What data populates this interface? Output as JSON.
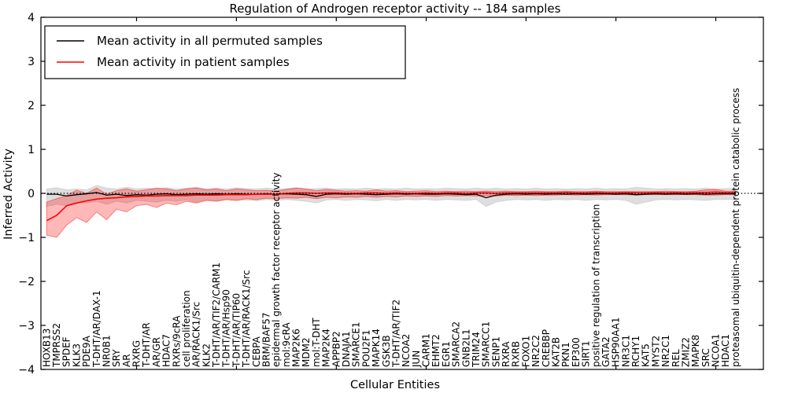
{
  "title": "Regulation of Androgen receptor activity -- 184 samples",
  "legend": {
    "position": "upper-left",
    "items": [
      {
        "label": "Mean activity in all permuted samples",
        "color": "#000000"
      },
      {
        "label": "Mean activity in patient samples",
        "color": "#ff0000"
      }
    ]
  },
  "chart_data": {
    "type": "line",
    "title": "Regulation of Androgen receptor activity -- 184 samples",
    "xlabel": "Cellular Entities",
    "ylabel": "Inferred Activity",
    "ylim": [
      -4,
      4
    ],
    "yticks": [
      4,
      3,
      2,
      1,
      0,
      -1,
      -2,
      -3,
      -4
    ],
    "ytick_labels": [
      "4",
      "3",
      "2",
      "1",
      "0",
      "−1",
      "−2",
      "−3",
      "−4"
    ],
    "grid": false,
    "zero_reference_line": "dotted",
    "legend_position": "upper-left",
    "categories": [
      "HOXB13",
      "TMPRSS2",
      "SPDEF",
      "KLK3",
      "PDE9A",
      "T-DHT/AR/DAX-1",
      "NR0B1",
      "SRY",
      "AR",
      "RXRG",
      "T-DHT/AR",
      "AR/GR",
      "HDAC7",
      "RXRs/9cRA",
      "cell proliferation",
      "AR/RACK1/Src",
      "KLK2",
      "T-DHT/AR/TIF2/CARM1",
      "T-DHT/AR/Hsp90",
      "T-DHT/AR/TIP60",
      "T-DHT/AR/RACK1/Src",
      "CEBPA",
      "BRM/BAF57",
      "epidermal growth factor receptor activity",
      "mol:9cRA",
      "MAP2K6",
      "MDM2",
      "mol:T-DHT",
      "MAP2K4",
      "APPBP2",
      "DNAJA1",
      "SMARCE1",
      "POU2F1",
      "MAPK14",
      "GSK3B",
      "T-DHT/AR/TIF2",
      "NCOA2",
      "JUN",
      "CARM1",
      "EHMT2",
      "EGR1",
      "SMARCA2",
      "GNB2L1",
      "TRIM24",
      "SMARCC1",
      "SENP1",
      "RXRA",
      "RXRB",
      "FOXO1",
      "NR2C2",
      "CREBBP",
      "KAT2B",
      "PKN1",
      "EP300",
      "SIRT1",
      "positive regulation of transcription",
      "GATA2",
      "HSP90AA1",
      "NR3C1",
      "RCHY1",
      "KAT5",
      "MYST2",
      "NR2C1",
      "REL",
      "ZMIZ2",
      "MAPK8",
      "SRC",
      "NCOA1",
      "HDAC1",
      "proteasomal ubiquitin-dependent protein catabolic process"
    ],
    "series": [
      {
        "name": "Mean activity in all permuted samples",
        "color": "#000000",
        "band_color": "rgba(0,0,0,0.13)",
        "band_edge_color": "rgba(0,0,0,0.10)",
        "values": [
          -0.02,
          -0.02,
          -0.06,
          -0.03,
          -0.01,
          0.02,
          -0.04,
          -0.02,
          -0.05,
          -0.03,
          -0.04,
          -0.02,
          -0.01,
          -0.03,
          -0.02,
          -0.01,
          -0.02,
          -0.01,
          -0.02,
          -0.01,
          -0.02,
          -0.02,
          -0.01,
          -0.02,
          -0.01,
          -0.02,
          -0.03,
          -0.07,
          -0.02,
          -0.01,
          -0.02,
          -0.01,
          -0.02,
          -0.03,
          -0.02,
          -0.01,
          -0.02,
          -0.01,
          -0.02,
          -0.02,
          -0.01,
          -0.02,
          -0.03,
          -0.02,
          -0.1,
          -0.04,
          -0.02,
          -0.01,
          -0.02,
          -0.01,
          -0.02,
          -0.01,
          -0.02,
          -0.01,
          -0.02,
          -0.01,
          -0.01,
          -0.02,
          -0.01,
          -0.03,
          -0.02,
          -0.01,
          -0.02,
          -0.01,
          -0.02,
          -0.01,
          -0.02,
          -0.01,
          -0.01,
          -0.01
        ],
        "band_upper": [
          0.1,
          0.13,
          0.08,
          0.1,
          0.08,
          0.18,
          0.12,
          0.1,
          0.14,
          0.1,
          0.12,
          0.1,
          0.13,
          0.1,
          0.12,
          0.14,
          0.1,
          0.12,
          0.1,
          0.13,
          0.11,
          0.1,
          0.12,
          0.1,
          0.11,
          0.13,
          0.1,
          0.11,
          0.12,
          0.1,
          0.11,
          0.1,
          0.12,
          0.1,
          0.11,
          0.1,
          0.12,
          0.1,
          0.11,
          0.1,
          0.12,
          0.11,
          0.1,
          0.12,
          0.1,
          0.12,
          0.1,
          0.11,
          0.1,
          0.12,
          0.1,
          0.11,
          0.1,
          0.11,
          0.1,
          0.12,
          0.1,
          0.11,
          0.1,
          0.14,
          0.12,
          0.1,
          0.11,
          0.1,
          0.11,
          0.1,
          0.12,
          0.1,
          0.11,
          0.12
        ],
        "band_lower": [
          -0.3,
          -0.25,
          -0.28,
          -0.2,
          -0.22,
          -0.18,
          -0.25,
          -0.18,
          -0.22,
          -0.16,
          -0.18,
          -0.2,
          -0.16,
          -0.18,
          -0.15,
          -0.2,
          -0.15,
          -0.17,
          -0.14,
          -0.16,
          -0.15,
          -0.17,
          -0.14,
          -0.16,
          -0.14,
          -0.16,
          -0.18,
          -0.22,
          -0.15,
          -0.14,
          -0.16,
          -0.14,
          -0.15,
          -0.17,
          -0.14,
          -0.16,
          -0.14,
          -0.15,
          -0.14,
          -0.16,
          -0.14,
          -0.15,
          -0.16,
          -0.14,
          -0.3,
          -0.2,
          -0.16,
          -0.14,
          -0.15,
          -0.14,
          -0.16,
          -0.14,
          -0.15,
          -0.14,
          -0.16,
          -0.14,
          -0.15,
          -0.14,
          -0.16,
          -0.25,
          -0.2,
          -0.15,
          -0.14,
          -0.15,
          -0.14,
          -0.15,
          -0.16,
          -0.14,
          -0.14,
          -0.14
        ]
      },
      {
        "name": "Mean activity in patient samples",
        "color": "#ff0000",
        "band_color": "rgba(255,0,0,0.28)",
        "band_edge_color": "rgba(255,0,0,0.45)",
        "values": [
          -0.62,
          -0.5,
          -0.28,
          -0.22,
          -0.17,
          -0.13,
          -0.11,
          -0.1,
          -0.08,
          -0.07,
          -0.06,
          -0.06,
          -0.05,
          -0.05,
          -0.05,
          -0.04,
          -0.04,
          -0.04,
          -0.03,
          -0.03,
          -0.03,
          -0.02,
          -0.02,
          -0.02,
          0.0,
          0.01,
          0.01,
          0.0,
          0.01,
          0.01,
          0.0,
          0.0,
          0.01,
          0.01,
          0.0,
          0.01,
          0.0,
          0.0,
          0.01,
          0.0,
          0.01,
          0.01,
          0.0,
          0.01,
          0.01,
          0.0,
          0.01,
          0.01,
          0.01,
          0.01,
          0.01,
          0.01,
          0.02,
          0.01,
          0.01,
          0.02,
          0.01,
          0.01,
          0.02,
          0.01,
          0.01,
          0.02,
          0.01,
          0.02,
          0.01,
          0.02,
          0.02,
          0.03,
          0.02,
          0.02
        ],
        "band_upper": [
          -0.2,
          -0.12,
          -0.05,
          0.07,
          0.0,
          0.12,
          -0.02,
          0.06,
          0.1,
          0.05,
          0.08,
          0.12,
          0.1,
          0.06,
          0.1,
          0.12,
          0.08,
          0.1,
          0.06,
          0.1,
          0.08,
          0.06,
          0.07,
          0.05,
          0.09,
          0.12,
          0.1,
          0.06,
          0.09,
          0.07,
          0.05,
          0.06,
          0.05,
          0.08,
          0.05,
          0.06,
          0.04,
          0.05,
          0.06,
          0.04,
          0.05,
          0.04,
          0.05,
          0.04,
          0.05,
          0.04,
          0.05,
          0.04,
          0.04,
          0.05,
          0.04,
          0.04,
          0.05,
          0.04,
          0.04,
          0.05,
          0.04,
          0.04,
          0.04,
          0.04,
          0.04,
          0.04,
          0.05,
          0.04,
          0.04,
          0.05,
          0.08,
          0.09,
          0.05,
          0.05
        ],
        "band_lower": [
          -0.95,
          -1.0,
          -0.72,
          -0.55,
          -0.66,
          -0.42,
          -0.6,
          -0.36,
          -0.42,
          -0.28,
          -0.25,
          -0.32,
          -0.22,
          -0.26,
          -0.18,
          -0.22,
          -0.16,
          -0.18,
          -0.14,
          -0.16,
          -0.12,
          -0.14,
          -0.11,
          -0.12,
          -0.1,
          -0.11,
          -0.09,
          -0.12,
          -0.09,
          -0.1,
          -0.08,
          -0.09,
          -0.07,
          -0.09,
          -0.07,
          -0.08,
          -0.06,
          -0.07,
          -0.06,
          -0.07,
          -0.05,
          -0.06,
          -0.05,
          -0.06,
          -0.05,
          -0.06,
          -0.04,
          -0.05,
          -0.04,
          -0.05,
          -0.04,
          -0.04,
          -0.03,
          -0.04,
          -0.03,
          -0.04,
          -0.03,
          -0.03,
          -0.03,
          -0.04,
          -0.03,
          -0.03,
          -0.03,
          -0.03,
          -0.03,
          -0.03,
          -0.04,
          -0.04,
          -0.03,
          -0.03
        ]
      }
    ]
  }
}
